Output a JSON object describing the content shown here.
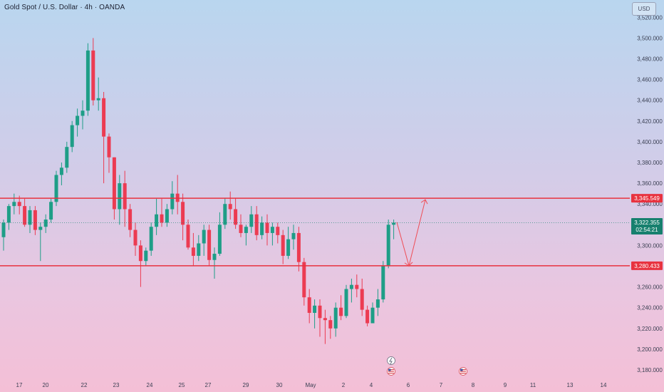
{
  "header": {
    "title": "Gold Spot / U.S. Dollar · 4h · OANDA",
    "currency": "USD"
  },
  "colors": {
    "up": "#1e9e87",
    "down": "#ec3b52",
    "level_line": "#e8323f",
    "projection": "#ef4d56",
    "current_tag": "#17806e",
    "axis_text": "#3a3f52"
  },
  "levels": {
    "resistance_label": "3,345.549",
    "support_label": "3,280.433"
  },
  "current_price": {
    "label": "3,322.355",
    "countdown": "02:54:21"
  },
  "y_ticks": [
    "3,520.000",
    "3,500.000",
    "3,480.000",
    "3,460.000",
    "3,440.000",
    "3,420.000",
    "3,400.000",
    "3,380.000",
    "3,360.000",
    "3,340.000",
    "3,320.000",
    "3,300.000",
    "3,280.000",
    "3,260.000",
    "3,240.000",
    "3,220.000",
    "3,200.000",
    "3,180.000"
  ],
  "x_ticks": [
    "17",
    "20",
    "22",
    "23",
    "24",
    "25",
    "27",
    "29",
    "30",
    "May",
    "2",
    "4",
    "6",
    "7",
    "8",
    "9",
    "11",
    "13",
    "14"
  ],
  "chart_data": {
    "type": "candlestick",
    "title": "Gold Spot / U.S. Dollar · 4h · OANDA",
    "ylim": [
      3175,
      3522
    ],
    "ohlc": [
      [
        3308,
        3325,
        3295,
        3322
      ],
      [
        3322,
        3340,
        3315,
        3338
      ],
      [
        3338,
        3350,
        3330,
        3342
      ],
      [
        3342,
        3348,
        3330,
        3338
      ],
      [
        3338,
        3345,
        3318,
        3320
      ],
      [
        3320,
        3338,
        3312,
        3334
      ],
      [
        3334,
        3338,
        3310,
        3315
      ],
      [
        3315,
        3322,
        3285,
        3318
      ],
      [
        3318,
        3330,
        3312,
        3325
      ],
      [
        3325,
        3345,
        3322,
        3342
      ],
      [
        3342,
        3372,
        3338,
        3368
      ],
      [
        3368,
        3380,
        3358,
        3375
      ],
      [
        3375,
        3400,
        3370,
        3395
      ],
      [
        3395,
        3420,
        3390,
        3416
      ],
      [
        3416,
        3432,
        3405,
        3425
      ],
      [
        3425,
        3440,
        3412,
        3430
      ],
      [
        3430,
        3495,
        3425,
        3488
      ],
      [
        3488,
        3500,
        3435,
        3440
      ],
      [
        3440,
        3462,
        3430,
        3442
      ],
      [
        3442,
        3448,
        3360,
        3405
      ],
      [
        3405,
        3408,
        3370,
        3385
      ],
      [
        3385,
        3385,
        3325,
        3335
      ],
      [
        3335,
        3368,
        3320,
        3360
      ],
      [
        3360,
        3372,
        3318,
        3335
      ],
      [
        3335,
        3340,
        3308,
        3315
      ],
      [
        3315,
        3322,
        3290,
        3300
      ],
      [
        3300,
        3305,
        3260,
        3285
      ],
      [
        3285,
        3298,
        3280,
        3295
      ],
      [
        3295,
        3322,
        3290,
        3318
      ],
      [
        3318,
        3345,
        3310,
        3330
      ],
      [
        3330,
        3345,
        3318,
        3322
      ],
      [
        3322,
        3340,
        3318,
        3335
      ],
      [
        3335,
        3362,
        3330,
        3350
      ],
      [
        3350,
        3368,
        3330,
        3342
      ],
      [
        3342,
        3350,
        3305,
        3320
      ],
      [
        3320,
        3325,
        3296,
        3298
      ],
      [
        3298,
        3312,
        3280,
        3290
      ],
      [
        3290,
        3310,
        3285,
        3302
      ],
      [
        3302,
        3320,
        3290,
        3315
      ],
      [
        3315,
        3320,
        3280,
        3286
      ],
      [
        3286,
        3298,
        3268,
        3292
      ],
      [
        3292,
        3332,
        3290,
        3320
      ],
      [
        3320,
        3346,
        3316,
        3340
      ],
      [
        3340,
        3352,
        3325,
        3335
      ],
      [
        3335,
        3346,
        3316,
        3320
      ],
      [
        3320,
        3330,
        3308,
        3312
      ],
      [
        3312,
        3320,
        3300,
        3318
      ],
      [
        3318,
        3338,
        3312,
        3330
      ],
      [
        3330,
        3338,
        3305,
        3310
      ],
      [
        3310,
        3328,
        3306,
        3322
      ],
      [
        3322,
        3330,
        3300,
        3312
      ],
      [
        3312,
        3322,
        3300,
        3318
      ],
      [
        3318,
        3322,
        3302,
        3310
      ],
      [
        3310,
        3315,
        3282,
        3290
      ],
      [
        3290,
        3318,
        3287,
        3306
      ],
      [
        3306,
        3320,
        3296,
        3312
      ],
      [
        3312,
        3318,
        3275,
        3284
      ],
      [
        3284,
        3288,
        3242,
        3250
      ],
      [
        3250,
        3258,
        3225,
        3235
      ],
      [
        3235,
        3248,
        3220,
        3242
      ],
      [
        3242,
        3248,
        3212,
        3230
      ],
      [
        3230,
        3238,
        3205,
        3228
      ],
      [
        3228,
        3232,
        3210,
        3220
      ],
      [
        3220,
        3245,
        3212,
        3240
      ],
      [
        3240,
        3252,
        3228,
        3232
      ],
      [
        3232,
        3262,
        3230,
        3258
      ],
      [
        3258,
        3268,
        3245,
        3262
      ],
      [
        3262,
        3272,
        3250,
        3258
      ],
      [
        3258,
        3268,
        3232,
        3238
      ],
      [
        3238,
        3242,
        3222,
        3225
      ],
      [
        3225,
        3245,
        3225,
        3240
      ],
      [
        3240,
        3258,
        3232,
        3248
      ],
      [
        3248,
        3285,
        3245,
        3280
      ],
      [
        3280,
        3325,
        3278,
        3320
      ],
      [
        3320,
        3325,
        3306,
        3322
      ]
    ],
    "resistance": 3345.549,
    "support": 3280.433,
    "projection": [
      [
        3322.355,
        3280.433
      ],
      [
        3280.433,
        3345.549
      ]
    ]
  }
}
